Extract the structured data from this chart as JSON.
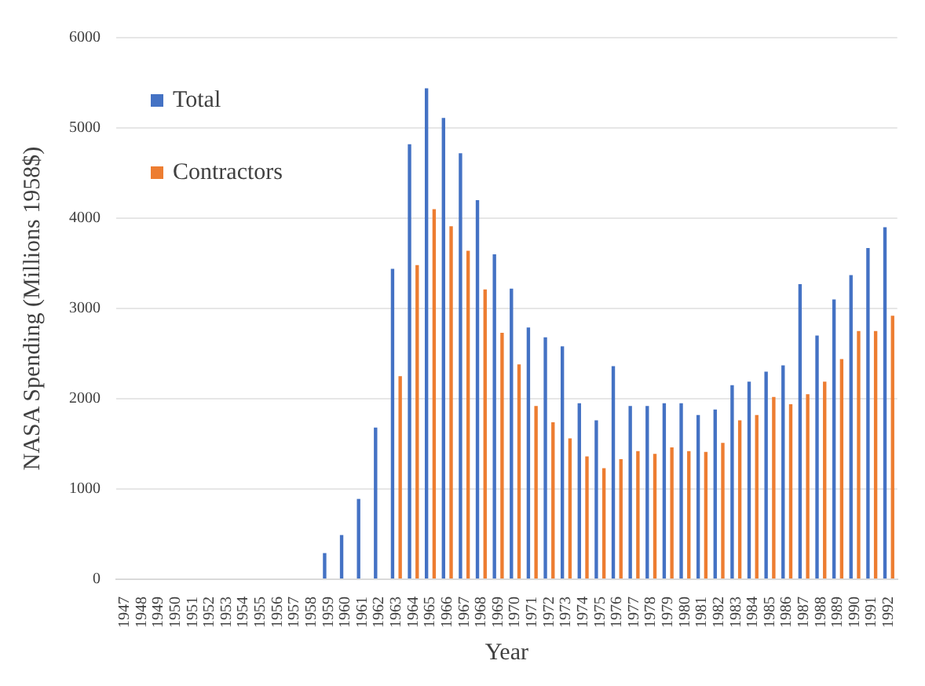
{
  "chart_data": {
    "type": "bar",
    "xlabel": "Year",
    "ylabel": "NASA Spending (Millions 1958$)",
    "categories": [
      "1947",
      "1948",
      "1949",
      "1950",
      "1951",
      "1952",
      "1953",
      "1954",
      "1955",
      "1956",
      "1957",
      "1958",
      "1959",
      "1960",
      "1961",
      "1962",
      "1963",
      "1964",
      "1965",
      "1966",
      "1967",
      "1968",
      "1969",
      "1970",
      "1971",
      "1972",
      "1973",
      "1974",
      "1975",
      "1976",
      "1977",
      "1978",
      "1979",
      "1980",
      "1981",
      "1982",
      "1983",
      "1984",
      "1985",
      "1986",
      "1987",
      "1988",
      "1989",
      "1990",
      "1991",
      "1992"
    ],
    "series": [
      {
        "name": "Total",
        "color": "#4472c4",
        "values": [
          null,
          null,
          null,
          null,
          null,
          null,
          null,
          null,
          null,
          null,
          null,
          null,
          290,
          490,
          890,
          1680,
          3440,
          4820,
          5440,
          5110,
          4720,
          4200,
          3600,
          3220,
          2790,
          2680,
          2580,
          1950,
          1760,
          2360,
          1920,
          1920,
          1950,
          1950,
          1820,
          1880,
          2150,
          2190,
          2300,
          2370,
          3270,
          2700,
          3100,
          3370,
          3670,
          3900
        ]
      },
      {
        "name": "Contractors",
        "color": "#ed7d31",
        "values": [
          null,
          null,
          null,
          null,
          null,
          null,
          null,
          null,
          null,
          null,
          null,
          null,
          null,
          null,
          null,
          null,
          2250,
          3480,
          4100,
          3910,
          3640,
          3210,
          2730,
          2380,
          1920,
          1740,
          1560,
          1360,
          1230,
          1330,
          1420,
          1390,
          1460,
          1420,
          1410,
          1510,
          1760,
          1820,
          2020,
          1940,
          2050,
          2190,
          2440,
          2750,
          2750,
          2920
        ]
      }
    ],
    "ylim": [
      0,
      6000
    ],
    "yticks": [
      0,
      1000,
      2000,
      3000,
      4000,
      5000,
      6000
    ],
    "grid": "y",
    "legend": "top left"
  }
}
